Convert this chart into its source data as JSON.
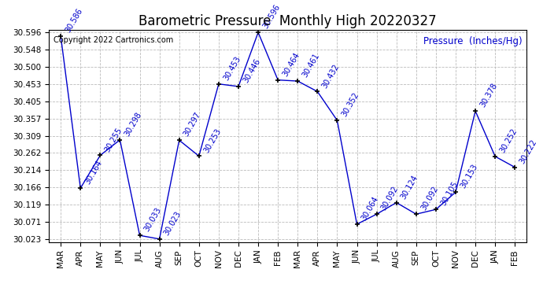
{
  "title": "Barometric Pressure  Monthly High 20220327",
  "ylabel": "Pressure  (Inches/Hg)",
  "copyright_text": "Copyright 2022 Cartronics.com",
  "months": [
    "MAR",
    "APR",
    "MAY",
    "JUN",
    "JUL",
    "AUG",
    "SEP",
    "OCT",
    "NOV",
    "DEC",
    "JAN",
    "FEB",
    "MAR",
    "APR",
    "MAY",
    "JUN",
    "JUL",
    "AUG",
    "SEP",
    "OCT",
    "NOV",
    "DEC",
    "JAN",
    "FEB"
  ],
  "values": [
    30.586,
    30.164,
    30.255,
    30.298,
    30.033,
    30.023,
    30.297,
    30.253,
    30.453,
    30.446,
    30.596,
    30.464,
    30.461,
    30.432,
    30.352,
    30.064,
    30.092,
    30.124,
    30.092,
    30.105,
    30.153,
    30.378,
    30.252,
    30.222
  ],
  "line_color": "#0000cc",
  "marker_color": "#000000",
  "background_color": "#ffffff",
  "grid_color": "#bbbbbb",
  "ylim_min": 30.023,
  "ylim_max": 30.596,
  "ytick_values": [
    30.023,
    30.071,
    30.119,
    30.166,
    30.214,
    30.262,
    30.309,
    30.357,
    30.405,
    30.453,
    30.5,
    30.548,
    30.596
  ],
  "title_fontsize": 12,
  "annot_fontsize": 7,
  "tick_fontsize": 7.5,
  "copyright_fontsize": 7,
  "ylabel_fontsize": 8.5
}
